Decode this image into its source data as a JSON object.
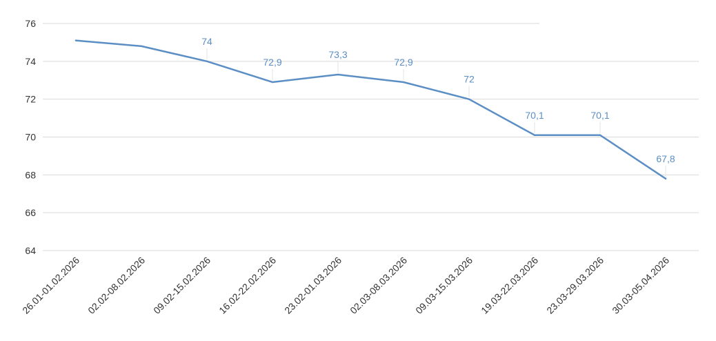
{
  "chart_data": {
    "type": "line",
    "title": "",
    "xlabel": "",
    "ylabel": "",
    "ylim": [
      64,
      76
    ],
    "yticks": [
      "64",
      "66",
      "68",
      "70",
      "72",
      "74",
      "76"
    ],
    "grid": true,
    "categories": [
      "26.01-01.02.2026",
      "02.02-08.02.2026",
      "09.02-15.02.2026",
      "16.02-22.02.2026",
      "23.02-01.03.2026",
      "02.03-08.03.2026",
      "09.03-15.03.2026",
      "19.03-22.03.2026",
      "23.03-29.03.2026",
      "30.03-05.04.2026"
    ],
    "series": [
      {
        "values": [
          75.1,
          74.8,
          74,
          72.9,
          73.3,
          72.9,
          72,
          70.1,
          70.1,
          67.8
        ],
        "data_labels": [
          "",
          "",
          "74",
          "72,9",
          "73,3",
          "72,9",
          "72",
          "70,1",
          "70,1",
          "67,8"
        ],
        "color": "#5b8ec4",
        "label_color": "#5b8ec4"
      }
    ]
  }
}
